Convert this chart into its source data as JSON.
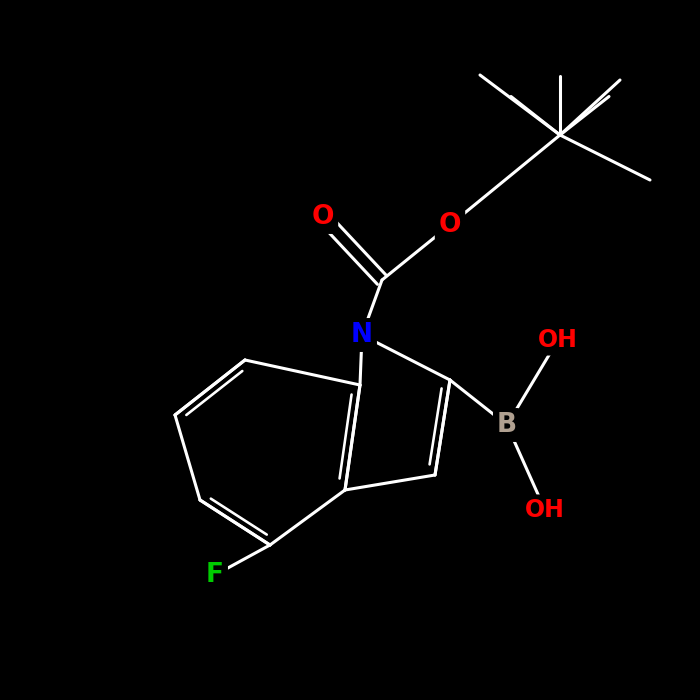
{
  "background_color": "#000000",
  "bond_color": "#ffffff",
  "atom_colors": {
    "N": "#0000ff",
    "O": "#ff0000",
    "F": "#00cc00",
    "B": "#b0a090",
    "C": "#ffffff",
    "H": "#ffffff"
  },
  "bond_width": 2.2,
  "figsize": [
    7.0,
    7.0
  ],
  "dpi": 100,
  "xlim": [
    0,
    10
  ],
  "ylim": [
    0,
    10
  ]
}
